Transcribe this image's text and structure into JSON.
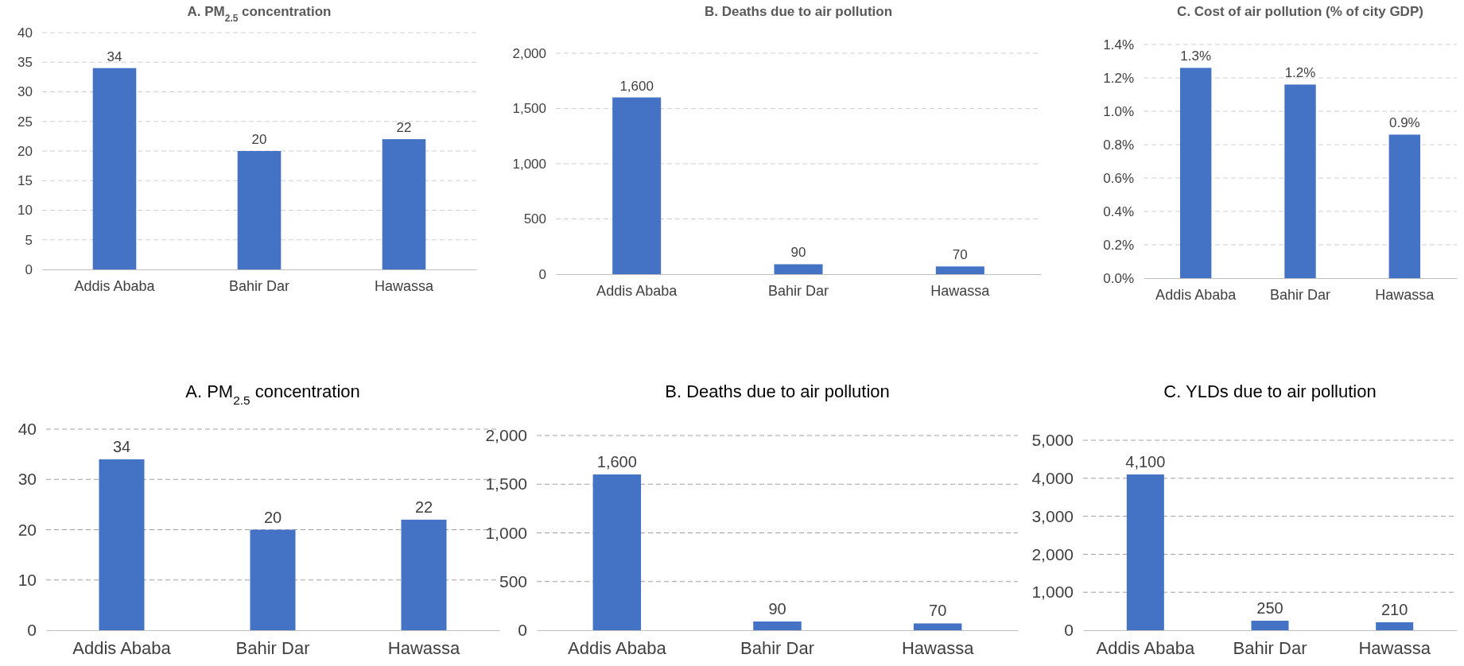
{
  "chart_data": [
    {
      "type": "bar",
      "title": "A. PM$_{2.5}$ concentration",
      "categories": [
        "Addis Ababa",
        "Bahir Dar",
        "Hawassa"
      ],
      "values": [
        34,
        20,
        22
      ],
      "color": "#4472c4",
      "ylim": [
        0,
        40
      ],
      "yticks": [
        0,
        5,
        10,
        15,
        20,
        25,
        30,
        35,
        40
      ],
      "grid": "y",
      "data_labels": true
    },
    {
      "type": "bar",
      "title": "B. Deaths due to air pollution",
      "categories": [
        "Addis Ababa",
        "Bahir Dar",
        "Hawassa"
      ],
      "values": [
        1600,
        90,
        70
      ],
      "color": "#4472c4",
      "ylim": [
        0,
        2000
      ],
      "yticks": [
        0,
        500,
        {
          "value": 1000,
          "label": "1,000"
        },
        {
          "value": 1500,
          "label": "1,500"
        },
        {
          "value": 2000,
          "label": "2,000"
        }
      ],
      "grid": "y",
      "value_labels": [
        "1,600",
        "90",
        "70"
      ]
    },
    {
      "type": "bar",
      "title": "C. Cost of air pollution (% of city GDP)",
      "categories": [
        "Addis Ababa",
        "Bahir Dar",
        "Hawassa"
      ],
      "values": [
        1.26,
        1.16,
        0.86
      ],
      "color": "#4472c4",
      "ylim": [
        0,
        1.4
      ],
      "yticks": [
        {
          "value": 0,
          "label": "0.0%"
        },
        {
          "value": 0.2,
          "label": "0.2%"
        },
        {
          "value": 0.4,
          "label": "0.4%"
        },
        {
          "value": 0.6,
          "label": "0.6%"
        },
        {
          "value": 0.8,
          "label": "0.8%"
        },
        {
          "value": 1.0,
          "label": "1.0%"
        },
        {
          "value": 1.2,
          "label": "1.2%"
        },
        {
          "value": 1.4,
          "label": "1.4%"
        }
      ],
      "grid": "y",
      "value_labels": [
        "1.3%",
        "1.2%",
        "0.9%"
      ]
    },
    {
      "type": "bar",
      "title": "A. PM$_{2.5}$ concentration",
      "categories": [
        "Addis Ababa",
        "Bahir Dar",
        "Hawassa"
      ],
      "values": [
        34,
        20,
        22
      ],
      "color": "#4472c4",
      "ylim": [
        0,
        40
      ],
      "yticks": [
        0,
        10,
        20,
        30,
        40
      ],
      "grid": "y",
      "data_labels": true
    },
    {
      "type": "bar",
      "title": "B. Deaths due to air pollution",
      "categories": [
        "Addis Ababa",
        "Bahir Dar",
        "Hawassa"
      ],
      "values": [
        1600,
        90,
        70
      ],
      "color": "#4472c4",
      "ylim": [
        0,
        2000
      ],
      "yticks": [
        0,
        500,
        {
          "value": 1000,
          "label": "1,000"
        },
        {
          "value": 1500,
          "label": "1,500"
        },
        {
          "value": 2000,
          "label": "2,000"
        }
      ],
      "grid": "y",
      "value_labels": [
        "1,600",
        "90",
        "70"
      ]
    },
    {
      "type": "bar",
      "title": "C. YLDs due to air pollution",
      "categories": [
        "Addis Ababa",
        "Bahir Dar",
        "Hawassa"
      ],
      "values": [
        4100,
        250,
        210
      ],
      "color": "#4472c4",
      "ylim": [
        0,
        5000
      ],
      "yticks": [
        0,
        {
          "value": 1000,
          "label": "1,000"
        },
        {
          "value": 2000,
          "label": "2,000"
        },
        {
          "value": 3000,
          "label": "3,000"
        },
        {
          "value": 4000,
          "label": "4,000"
        },
        {
          "value": 5000,
          "label": "5,000"
        }
      ],
      "grid": "y",
      "value_labels": [
        "4,100",
        "250",
        "210"
      ]
    }
  ]
}
